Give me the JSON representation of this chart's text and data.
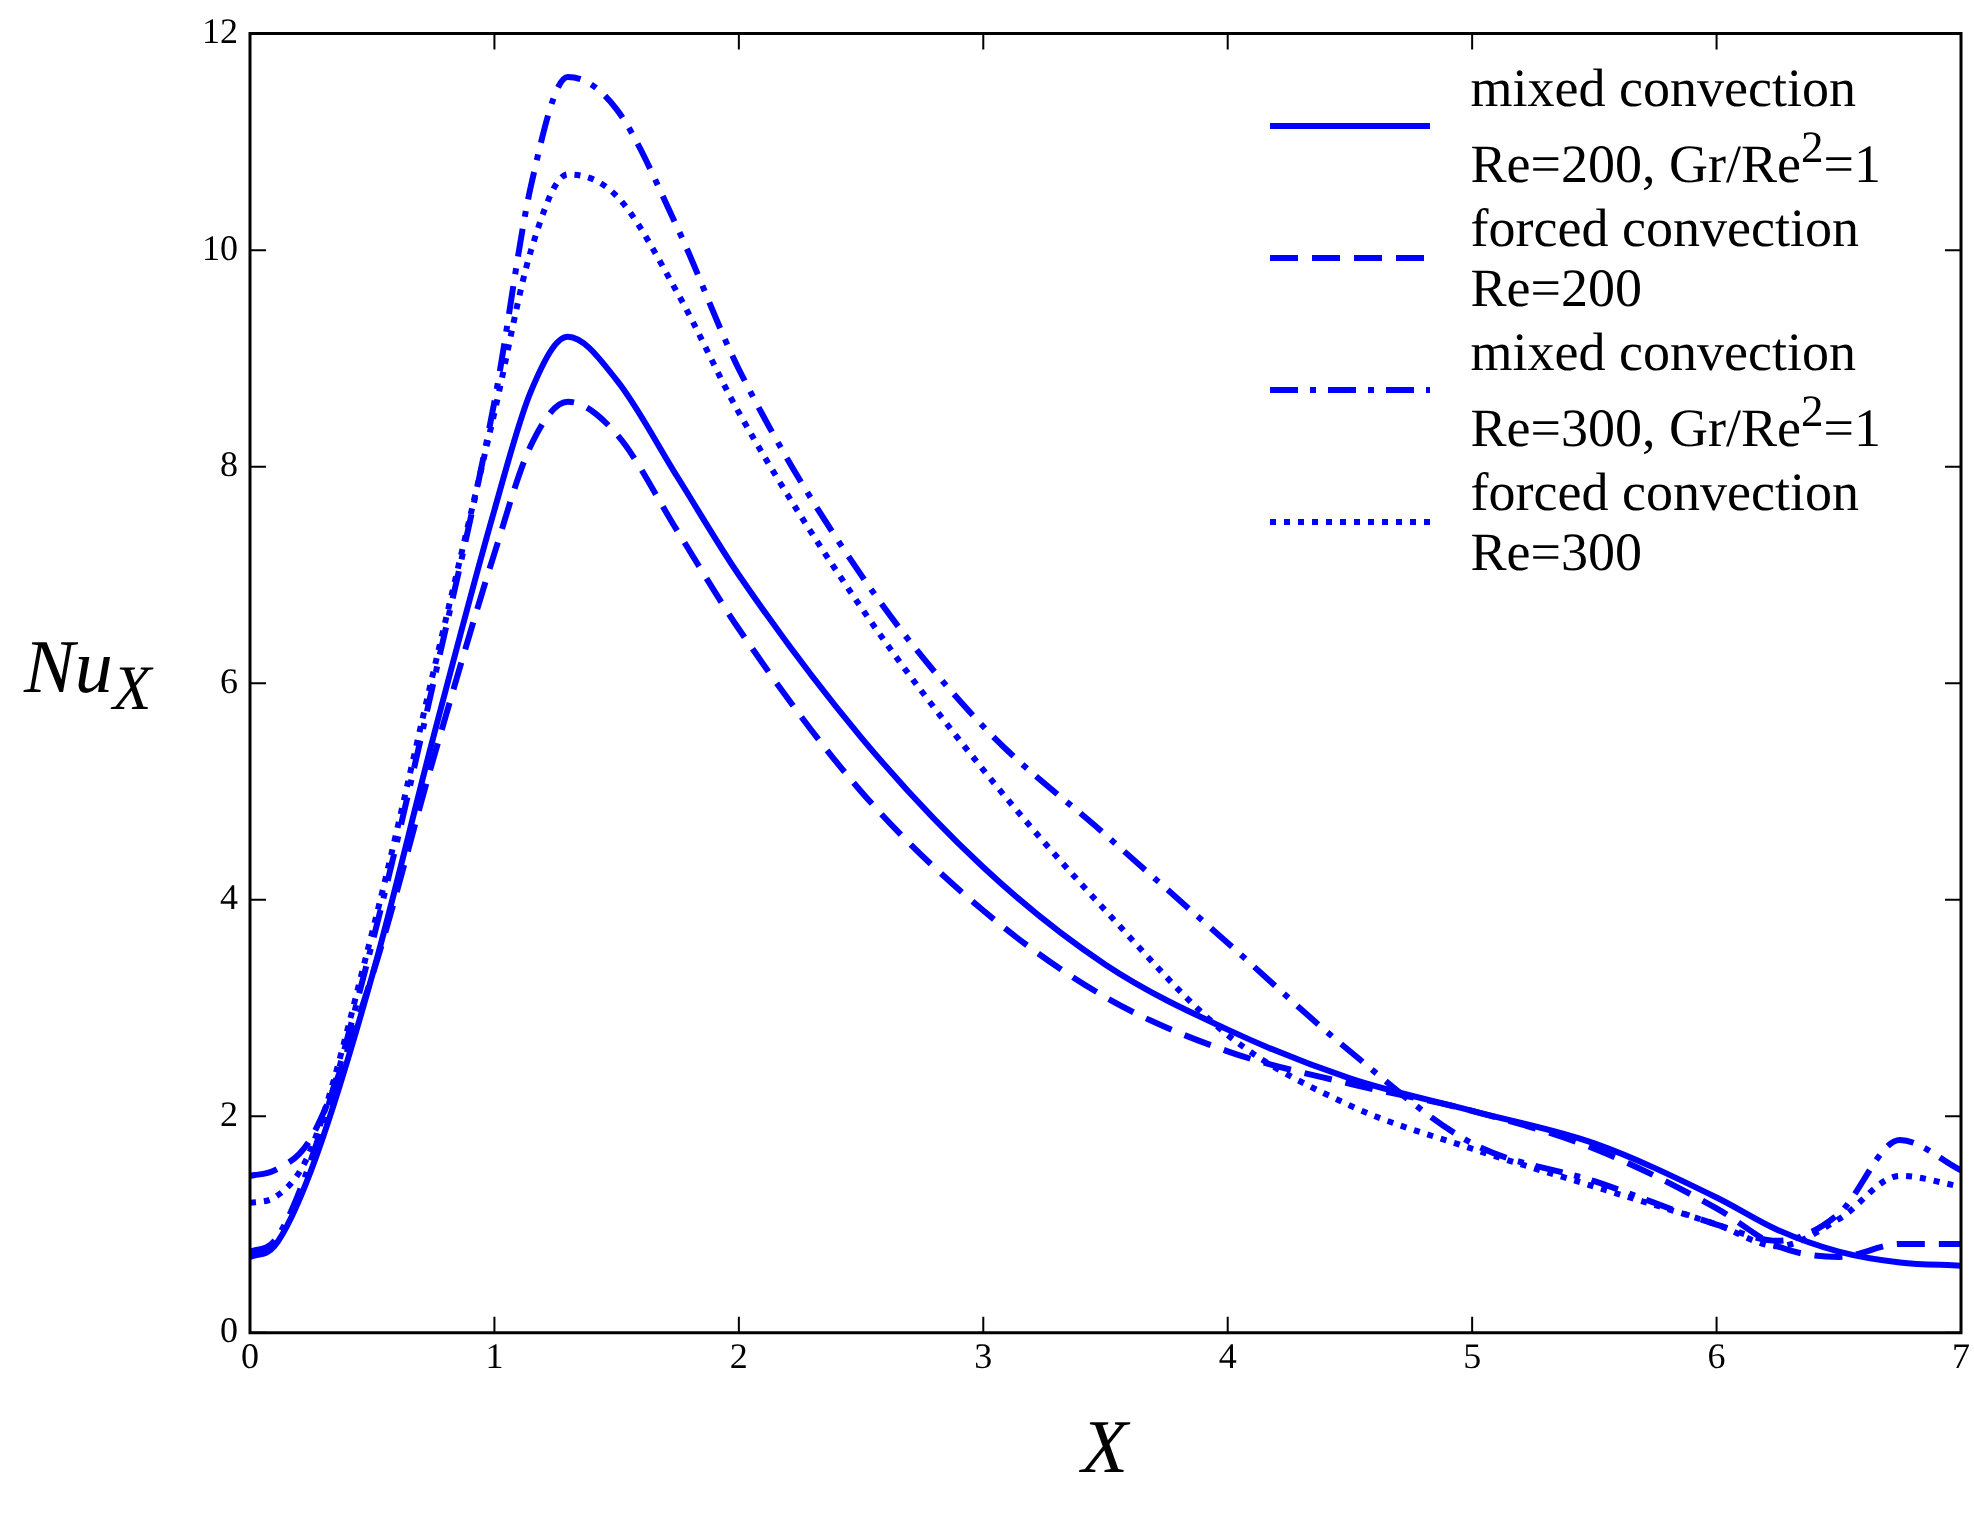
{
  "chart_data": {
    "type": "line",
    "xlabel": "X",
    "ylabel": "Nu$_{X}$",
    "xlim": [
      0,
      7
    ],
    "xticks": [
      0,
      1,
      2,
      3,
      4,
      5,
      6,
      7
    ],
    "ylim": [
      0,
      12
    ],
    "yticks": [
      0,
      2,
      4,
      6,
      8,
      10,
      12
    ],
    "grid": false,
    "legend": "top right",
    "marker": "none",
    "x": [
      0,
      0.1,
      0.25,
      0.5,
      0.75,
      1,
      1.15,
      1.3,
      1.5,
      1.75,
      2,
      2.5,
      3,
      3.5,
      4,
      4.5,
      5,
      5.5,
      6,
      6.25,
      6.5,
      6.75,
      7
    ],
    "series": [
      {
        "name": "mixed convection\nRe=200, Gr/Re$^{2}$=1",
        "color": "#0000ff",
        "line_style": "solid",
        "values": [
          0.7,
          0.8,
          1.5,
          3.3,
          5.5,
          7.6,
          8.7,
          9.2,
          8.8,
          7.9,
          7.0,
          5.5,
          4.3,
          3.4,
          2.8,
          2.35,
          2.05,
          1.75,
          1.25,
          0.95,
          0.75,
          0.65,
          0.62
        ]
      },
      {
        "name": "forced convection\nRe=200",
        "color": "#0000ff",
        "line_style": "dashed",
        "values": [
          1.45,
          1.5,
          1.8,
          3.3,
          5.3,
          7.2,
          8.2,
          8.6,
          8.3,
          7.4,
          6.5,
          5.0,
          3.9,
          3.1,
          2.6,
          2.3,
          2.05,
          1.7,
          1.15,
          0.8,
          0.7,
          0.82,
          0.82
        ]
      },
      {
        "name": "mixed convection\nRe=300, Gr/Re$^{2}$=1",
        "color": "#0000ff",
        "line_style": "dashdot",
        "values": [
          0.75,
          0.85,
          1.6,
          3.6,
          6.0,
          8.6,
          10.6,
          11.6,
          11.3,
          10.2,
          8.9,
          7.0,
          5.6,
          4.6,
          3.6,
          2.6,
          1.75,
          1.4,
          1.0,
          0.85,
          1.1,
          1.78,
          1.5
        ]
      },
      {
        "name": "forced convection\nRe=300",
        "color": "#0000ff",
        "line_style": "dotted",
        "values": [
          1.2,
          1.25,
          1.7,
          3.7,
          6.1,
          8.5,
          10.0,
          10.7,
          10.5,
          9.6,
          8.5,
          6.7,
          5.2,
          3.9,
          2.75,
          2.1,
          1.7,
          1.35,
          1.0,
          0.8,
          1.05,
          1.45,
          1.35
        ]
      }
    ]
  }
}
